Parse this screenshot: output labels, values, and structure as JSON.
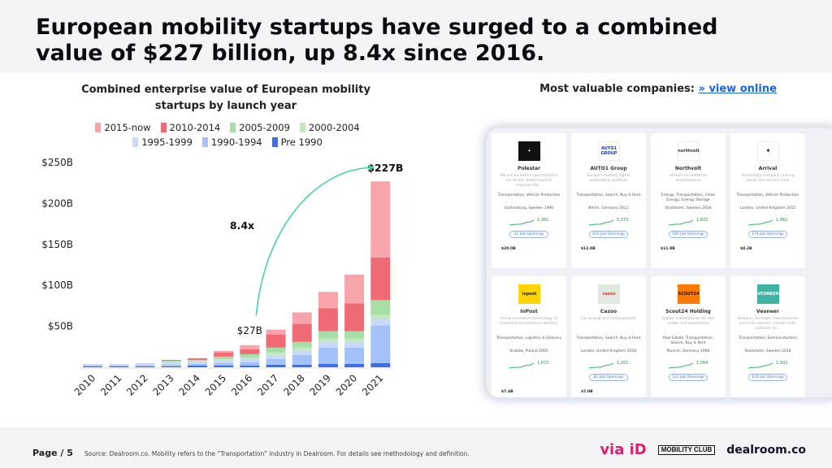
{
  "headline": "European mobility startups have surged to a combined value of $227 billion, up 8.4x since 2016.",
  "colors": {
    "2015-now": "#f7a4ab",
    "2010-2014": "#f06a76",
    "2005-2009": "#a6dfa6",
    "2000-2004": "#c3e8bf",
    "1995-1999": "#c8d9fa",
    "1990-1994": "#a5c2f8",
    "Pre 1990": "#3a6fe8",
    "arrow": "#3ecfa3",
    "link": "#1a62e8"
  },
  "chart_data": {
    "type": "bar",
    "stacked": true,
    "title": "Combined enterprise value of European mobility startups by launch year",
    "title_lines": [
      "Combined enterprise value of European mobility",
      "startups by launch year"
    ],
    "legend_rows": [
      [
        "2015-now",
        "2010-2014",
        "2005-2009",
        "2000-2004"
      ],
      [
        "1995-1999",
        "1990-1994",
        "Pre 1990"
      ]
    ],
    "categories": [
      "2010",
      "2011",
      "2012",
      "2013",
      "2014",
      "2015",
      "2016",
      "2017",
      "2018",
      "2019",
      "2020",
      "2021"
    ],
    "ylim": [
      0,
      250
    ],
    "yticks": [
      50,
      100,
      150,
      200,
      250
    ],
    "ytick_labels": [
      "$50B",
      "$100B",
      "$150B",
      "$200B",
      "$250B"
    ],
    "series": [
      {
        "name": "Pre 1990",
        "values": [
          1,
          1,
          1,
          1,
          2,
          2,
          2,
          3,
          3,
          4,
          4,
          5
        ]
      },
      {
        "name": "1990-1994",
        "values": [
          1,
          1,
          1,
          2,
          2,
          3,
          4,
          7,
          12,
          20,
          20,
          46
        ]
      },
      {
        "name": "1995-1999",
        "values": [
          2,
          2,
          3,
          3,
          3,
          3,
          4,
          5,
          6,
          7,
          7,
          8
        ]
      },
      {
        "name": "2000-2004",
        "values": [
          0,
          0,
          0,
          1,
          1,
          2,
          2,
          3,
          3,
          4,
          4,
          5
        ]
      },
      {
        "name": "2005-2009",
        "values": [
          0,
          0,
          0,
          1,
          1,
          3,
          4,
          6,
          7,
          9,
          9,
          18
        ]
      },
      {
        "name": "2010-2014",
        "values": [
          0,
          0,
          0,
          1,
          2,
          5,
          6,
          16,
          22,
          28,
          34,
          52
        ]
      },
      {
        "name": "2015-now",
        "values": [
          0,
          0,
          0,
          0,
          0,
          2,
          5,
          6,
          14,
          20,
          35,
          93
        ]
      }
    ],
    "annotations": {
      "start_label": "$27B",
      "end_label": "$227B",
      "growth_label": "8.4x"
    }
  },
  "right_panel": {
    "title": "Most valuable companies:",
    "link_text": "» view online",
    "cards": [
      {
        "name": "Polestar",
        "logo": "✦",
        "desc": "We are an electric performance car brand, determined to improve the...",
        "industry": "Transportation, Vehicle Production",
        "location": "Gothenburg, Sweden",
        "founded": "1996",
        "employees": "1,361",
        "jobs": "31 Job Openings",
        "valuation": "$20.0B"
      },
      {
        "name": "AUTO1 Group",
        "logo": "AUTO1 GROUP",
        "desc": "Europe's leading digital automotive platform",
        "industry": "Transportation, Search, Buy & Rent",
        "location": "Berlin, Germany",
        "founded": "2012",
        "employees": "5,373",
        "jobs": "631 Job Openings",
        "valuation": "$12.0B"
      },
      {
        "name": "Northvolt",
        "logo": "northvolt",
        "desc": "Lithium-ion batteries manufacturer",
        "industry": "Energy, Transportation, Clean Energy, Energy Storage",
        "location": "Stockholm, Sweden",
        "founded": "2016",
        "employees": "1,822",
        "jobs": "585 Job Openings",
        "valuation": "$11.8B"
      },
      {
        "name": "Arrival",
        "logo": "✱",
        "desc": "Technology company making smart and electric vans",
        "industry": "Transportation, Vehicle Production",
        "location": "London, United Kingdom",
        "founded": "2015",
        "employees": "1,962",
        "jobs": "174 Job Openings",
        "valuation": "$8.2B"
      },
      {
        "name": "InPost",
        "logo": "inpost",
        "desc": "Using innovative technology to transform e-commerce delivery",
        "industry": "Transportation, Logistics & Delivery",
        "location": "Kraków, Poland",
        "founded": "2005",
        "employees": "1,072",
        "jobs": "",
        "valuation": "$7.4B"
      },
      {
        "name": "Cazoo",
        "logo": "cazoo",
        "desc": "Car buying and rental website",
        "industry": "Transportation, Search, Buy & Rent",
        "location": "London, United Kingdom",
        "founded": "2018",
        "employees": "1,261",
        "jobs": "81 Job Openings",
        "valuation": "$7.0B"
      },
      {
        "name": "Scout24 Holding",
        "logo": "SCOUT24",
        "desc": "Digital marketplaces for real estate and automotive",
        "industry": "Real Estate, Transportation, Search, Buy & Rent",
        "location": "Munich, Germany",
        "founded": "1998",
        "employees": "1,064",
        "jobs": "121 Job Openings",
        "valuation": ""
      },
      {
        "name": "Veoneer",
        "logo": "VEONEER",
        "desc": "Designs, develops, manufactures and sells sensors, control units, software an...",
        "industry": "Transportation, Semiconductors",
        "location": "Stockholm, Sweden",
        "founded": "2018",
        "employees": "1,302",
        "jobs": "126 Job Openings",
        "valuation": ""
      }
    ]
  },
  "footer": {
    "page": "Page / 5",
    "source": "Source: Dealroom.co. Mobility refers to the “Transportation” industry in Dealroom. For details see methodology and definition."
  },
  "logos": {
    "via_id": "via iD",
    "mobility_club": "MOBILITY CLUB",
    "dealroom": "dealroom.co"
  }
}
